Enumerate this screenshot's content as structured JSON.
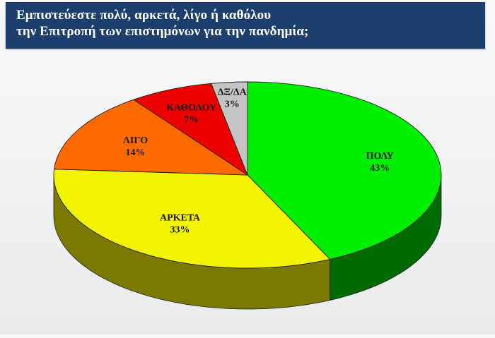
{
  "header": {
    "title_line1": "Εμπιστεύεστε πολύ, αρκετά, λίγο ή καθόλου",
    "title_line2": "την Επιτροπή των επιστημόνων για την πανδημία;"
  },
  "colors": {
    "header_bg": "#1c3f6e",
    "header_text": "#ffffff"
  },
  "chart_data": {
    "type": "pie",
    "style": "3d",
    "slices": [
      {
        "label": "ΠΟΛΥ",
        "value": 43,
        "value_label": "43%",
        "color": "#00ee00",
        "side_color": "#006b00"
      },
      {
        "label": "ΑΡΚΕΤΑ",
        "value": 33,
        "value_label": "33%",
        "color": "#f4f400",
        "side_color": "#7a7a00"
      },
      {
        "label": "ΛΙΓΟ",
        "value": 14,
        "value_label": "14%",
        "color": "#ff6a00",
        "side_color": "#8a3300"
      },
      {
        "label": "ΚΑΘΟΛΟΥ",
        "value": 7,
        "value_label": "7%",
        "color": "#ee0000",
        "side_color": "#7a0000"
      },
      {
        "label": "ΔΞ/ΔΑ",
        "value": 3,
        "value_label": "3%",
        "color": "#c4c4c4",
        "side_color": "#6e6e6e"
      }
    ],
    "legend": "none"
  }
}
